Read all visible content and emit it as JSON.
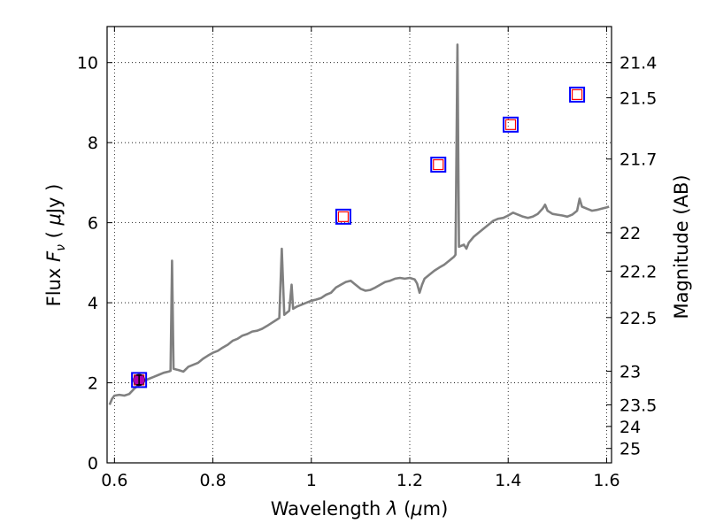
{
  "chart_data": {
    "type": "line",
    "xlabel": "Wavelength  λ (μm)",
    "ylabel": "Flux  F_ν  ( μJy )",
    "ylabel_parts": {
      "pre": "Flux  ",
      "sym": "F",
      "sub": "ν",
      "post": "  ( ",
      "mu": "μ",
      "unit": "Jy )"
    },
    "xlabel_parts": {
      "pre": "Wavelength  ",
      "sym": "λ",
      "post": " (",
      "mu": "μ",
      "unit": "m)"
    },
    "y2label": "Magnitude (AB)",
    "xlim": [
      0.585,
      1.61
    ],
    "ylim": [
      0,
      10.9
    ],
    "grid": true,
    "x_ticks": [
      0.6,
      0.8,
      1.0,
      1.2,
      1.4,
      1.6
    ],
    "x_tick_labels": [
      "0.6",
      "0.8",
      "1",
      "1.2",
      "1.4",
      "1.6"
    ],
    "y_ticks": [
      0,
      2,
      4,
      6,
      8,
      10
    ],
    "y_tick_labels": [
      "0",
      "2",
      "4",
      "6",
      "8",
      "10"
    ],
    "y2_ticks": [
      {
        "label": "21.4",
        "flux": 10.0
      },
      {
        "label": "21.5",
        "flux": 9.12
      },
      {
        "label": "21.7",
        "flux": 7.59
      },
      {
        "label": "22",
        "flux": 5.75
      },
      {
        "label": "22.2",
        "flux": 4.79
      },
      {
        "label": "22.5",
        "flux": 3.63
      },
      {
        "label": "23",
        "flux": 2.29
      },
      {
        "label": "23.5",
        "flux": 1.45
      },
      {
        "label": "24",
        "flux": 0.91
      },
      {
        "label": "25",
        "flux": 0.36
      }
    ],
    "series": [
      {
        "style": "line",
        "color": "#808080",
        "points": [
          [
            0.59,
            1.45
          ],
          [
            0.595,
            1.6
          ],
          [
            0.6,
            1.68
          ],
          [
            0.61,
            1.7
          ],
          [
            0.62,
            1.68
          ],
          [
            0.63,
            1.72
          ],
          [
            0.64,
            1.85
          ],
          [
            0.65,
            1.95
          ],
          [
            0.66,
            2.05
          ],
          [
            0.67,
            2.1
          ],
          [
            0.68,
            2.15
          ],
          [
            0.69,
            2.2
          ],
          [
            0.7,
            2.25
          ],
          [
            0.71,
            2.28
          ],
          [
            0.714,
            2.3
          ],
          [
            0.717,
            5.05
          ],
          [
            0.72,
            2.35
          ],
          [
            0.73,
            2.32
          ],
          [
            0.74,
            2.28
          ],
          [
            0.75,
            2.4
          ],
          [
            0.76,
            2.45
          ],
          [
            0.77,
            2.5
          ],
          [
            0.78,
            2.6
          ],
          [
            0.79,
            2.68
          ],
          [
            0.8,
            2.75
          ],
          [
            0.81,
            2.8
          ],
          [
            0.82,
            2.88
          ],
          [
            0.83,
            2.95
          ],
          [
            0.84,
            3.05
          ],
          [
            0.85,
            3.1
          ],
          [
            0.86,
            3.18
          ],
          [
            0.87,
            3.22
          ],
          [
            0.88,
            3.28
          ],
          [
            0.89,
            3.3
          ],
          [
            0.9,
            3.35
          ],
          [
            0.91,
            3.42
          ],
          [
            0.92,
            3.5
          ],
          [
            0.93,
            3.58
          ],
          [
            0.935,
            3.62
          ],
          [
            0.94,
            5.35
          ],
          [
            0.945,
            3.7
          ],
          [
            0.95,
            3.75
          ],
          [
            0.955,
            3.8
          ],
          [
            0.96,
            4.45
          ],
          [
            0.963,
            3.85
          ],
          [
            0.97,
            3.9
          ],
          [
            0.98,
            3.95
          ],
          [
            0.99,
            4.0
          ],
          [
            1.0,
            4.05
          ],
          [
            1.01,
            4.08
          ],
          [
            1.02,
            4.12
          ],
          [
            1.03,
            4.2
          ],
          [
            1.04,
            4.25
          ],
          [
            1.05,
            4.38
          ],
          [
            1.06,
            4.45
          ],
          [
            1.07,
            4.52
          ],
          [
            1.08,
            4.55
          ],
          [
            1.09,
            4.45
          ],
          [
            1.1,
            4.35
          ],
          [
            1.11,
            4.3
          ],
          [
            1.12,
            4.32
          ],
          [
            1.13,
            4.38
          ],
          [
            1.14,
            4.45
          ],
          [
            1.15,
            4.52
          ],
          [
            1.16,
            4.55
          ],
          [
            1.17,
            4.6
          ],
          [
            1.18,
            4.62
          ],
          [
            1.19,
            4.6
          ],
          [
            1.2,
            4.62
          ],
          [
            1.21,
            4.58
          ],
          [
            1.215,
            4.48
          ],
          [
            1.22,
            4.25
          ],
          [
            1.225,
            4.45
          ],
          [
            1.23,
            4.6
          ],
          [
            1.24,
            4.7
          ],
          [
            1.25,
            4.8
          ],
          [
            1.26,
            4.88
          ],
          [
            1.27,
            4.95
          ],
          [
            1.28,
            5.05
          ],
          [
            1.29,
            5.15
          ],
          [
            1.293,
            5.2
          ],
          [
            1.297,
            10.45
          ],
          [
            1.3,
            5.4
          ],
          [
            1.31,
            5.45
          ],
          [
            1.315,
            5.35
          ],
          [
            1.32,
            5.5
          ],
          [
            1.33,
            5.65
          ],
          [
            1.34,
            5.75
          ],
          [
            1.35,
            5.85
          ],
          [
            1.36,
            5.95
          ],
          [
            1.37,
            6.05
          ],
          [
            1.38,
            6.1
          ],
          [
            1.39,
            6.12
          ],
          [
            1.4,
            6.18
          ],
          [
            1.41,
            6.25
          ],
          [
            1.42,
            6.2
          ],
          [
            1.43,
            6.15
          ],
          [
            1.44,
            6.12
          ],
          [
            1.45,
            6.15
          ],
          [
            1.46,
            6.22
          ],
          [
            1.47,
            6.35
          ],
          [
            1.475,
            6.45
          ],
          [
            1.48,
            6.3
          ],
          [
            1.49,
            6.22
          ],
          [
            1.5,
            6.2
          ],
          [
            1.51,
            6.18
          ],
          [
            1.52,
            6.15
          ],
          [
            1.53,
            6.2
          ],
          [
            1.54,
            6.3
          ],
          [
            1.545,
            6.6
          ],
          [
            1.55,
            6.4
          ],
          [
            1.56,
            6.35
          ],
          [
            1.57,
            6.3
          ],
          [
            1.58,
            6.32
          ],
          [
            1.59,
            6.35
          ],
          [
            1.6,
            6.38
          ],
          [
            1.605,
            6.4
          ]
        ]
      },
      {
        "style": "markers",
        "marker": "open-square",
        "color": "#0000ff",
        "points": [
          [
            0.65,
            2.07
          ],
          [
            1.065,
            6.15
          ],
          [
            1.258,
            7.45
          ],
          [
            1.405,
            8.45
          ],
          [
            1.54,
            9.2
          ]
        ]
      },
      {
        "style": "markers",
        "marker": "open-square-small",
        "color": "#ff0000",
        "points": [
          [
            0.65,
            2.07
          ],
          [
            1.065,
            6.15
          ],
          [
            1.258,
            7.45
          ],
          [
            1.405,
            8.45
          ],
          [
            1.54,
            9.2
          ]
        ]
      },
      {
        "style": "markers",
        "marker": "filled-circle-errorbar",
        "color": "#b000b0",
        "points": [
          [
            0.65,
            2.07
          ]
        ],
        "yerr": [
          0.12
        ]
      }
    ]
  }
}
